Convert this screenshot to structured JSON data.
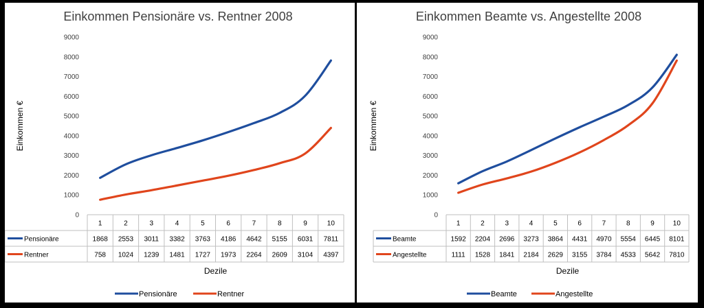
{
  "chart_data": [
    {
      "type": "line",
      "title": "Einkommen Pensionäre vs. Rentner 2008",
      "xlabel": "Dezile",
      "ylabel": "Einkommen €",
      "ylim": [
        0,
        9000
      ],
      "yticks": [
        0,
        1000,
        2000,
        3000,
        4000,
        5000,
        6000,
        7000,
        8000,
        9000
      ],
      "categories": [
        "1",
        "2",
        "3",
        "4",
        "5",
        "6",
        "7",
        "8",
        "9",
        "10"
      ],
      "series": [
        {
          "name": "Pensionäre",
          "color": "#1f4e9e",
          "values": [
            1868,
            2553,
            3011,
            3382,
            3763,
            4186,
            4642,
            5155,
            6031,
            7811
          ]
        },
        {
          "name": "Rentner",
          "color": "#e0451c",
          "values": [
            758,
            1024,
            1239,
            1481,
            1727,
            1973,
            2264,
            2609,
            3104,
            4397
          ]
        }
      ],
      "grid": false,
      "data_table": true,
      "legend": "bottom"
    },
    {
      "type": "line",
      "title": "Einkommen Beamte vs. Angestellte 2008",
      "xlabel": "Dezile",
      "ylabel": "Einkommen €",
      "ylim": [
        0,
        9000
      ],
      "yticks": [
        0,
        1000,
        2000,
        3000,
        4000,
        5000,
        6000,
        7000,
        8000,
        9000
      ],
      "categories": [
        "1",
        "2",
        "3",
        "4",
        "5",
        "6",
        "7",
        "8",
        "9",
        "10"
      ],
      "series": [
        {
          "name": "Beamte",
          "color": "#1f4e9e",
          "values": [
            1592,
            2204,
            2696,
            3273,
            3864,
            4431,
            4970,
            5554,
            6445,
            8101
          ]
        },
        {
          "name": "Angestellte",
          "color": "#e0451c",
          "values": [
            1111,
            1528,
            1841,
            2184,
            2629,
            3155,
            3784,
            4533,
            5642,
            7810
          ]
        }
      ],
      "grid": false,
      "data_table": true,
      "legend": "bottom"
    }
  ]
}
